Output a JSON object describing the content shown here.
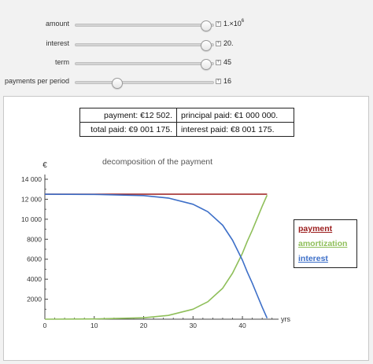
{
  "controls": [
    {
      "label": "amount",
      "value_base": "1.×10",
      "value_exp": "6",
      "position": 0.95
    },
    {
      "label": "interest",
      "value_base": "20.",
      "value_exp": "",
      "position": 0.95
    },
    {
      "label": "term",
      "value_base": "45",
      "value_exp": "",
      "position": 0.95
    },
    {
      "label": "payments per period",
      "value_base": "16",
      "value_exp": "",
      "position": 0.3
    }
  ],
  "summary": {
    "payment": "payment: €12 502.",
    "principal_paid": "principal paid: €1 000 000.",
    "total_paid": "total paid: €9 001 175.",
    "interest_paid": "interest paid: €8 001 175."
  },
  "legend": {
    "payment": "payment",
    "amortization": "amortization",
    "interest": "interest"
  },
  "colors": {
    "payment": "#9b1c1c",
    "amortization": "#8fbf5a",
    "interest": "#3d6fc8",
    "axis": "#444444"
  },
  "chart_data": {
    "type": "line",
    "title": "decomposition of the payment",
    "ylabel": "€",
    "xlabel": "yrs",
    "xlim": [
      0,
      47
    ],
    "ylim": [
      0,
      14000
    ],
    "x_ticks": [
      0,
      10,
      20,
      30,
      40
    ],
    "y_ticks": [
      2000,
      4000,
      6000,
      8000,
      10000,
      12000,
      14000
    ],
    "y_tick_labels": [
      "2000",
      "4000",
      "6000",
      "8000",
      "10 000",
      "12 000",
      "14 000"
    ],
    "series": [
      {
        "name": "payment",
        "color": "#9b1c1c",
        "x": [
          0,
          10,
          20,
          30,
          40,
          45
        ],
        "y": [
          12502,
          12502,
          12502,
          12502,
          12502,
          12502
        ]
      },
      {
        "name": "amortization",
        "color": "#8fbf5a",
        "x": [
          0,
          10,
          20,
          25,
          30,
          33,
          36,
          38,
          40,
          41,
          42,
          43,
          44,
          45
        ],
        "y": [
          2,
          20,
          140,
          380,
          1000,
          1750,
          3100,
          4600,
          6600,
          7800,
          8900,
          10100,
          11300,
          12400
        ]
      },
      {
        "name": "interest",
        "color": "#3d6fc8",
        "x": [
          0,
          10,
          20,
          25,
          30,
          33,
          36,
          38,
          40,
          41,
          42,
          43,
          44,
          45
        ],
        "y": [
          12500,
          12482,
          12362,
          12122,
          11502,
          10752,
          9402,
          7902,
          5902,
          4702,
          3602,
          2402,
          1202,
          100
        ]
      }
    ]
  }
}
